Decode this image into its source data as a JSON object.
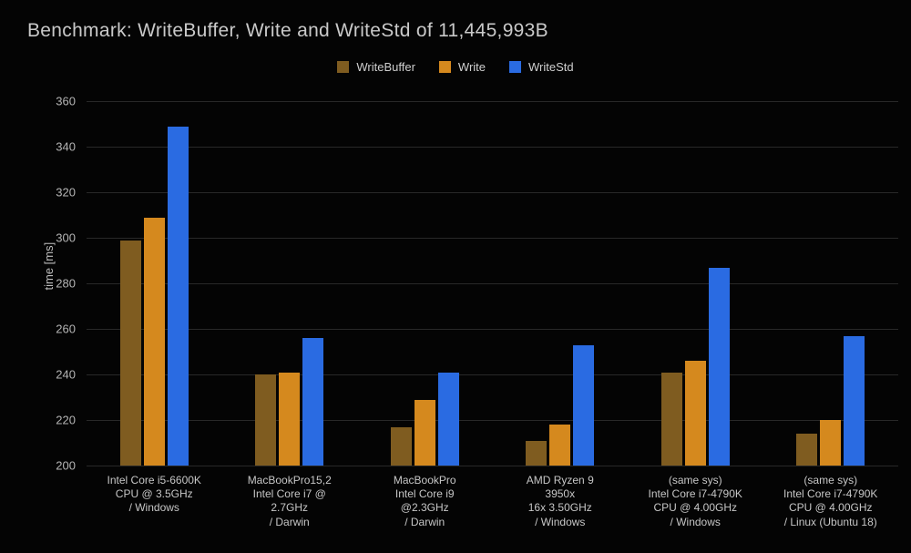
{
  "title": "Benchmark: WriteBuffer, Write and WriteStd of 11,445,993B",
  "chart_data": {
    "type": "bar",
    "title": "Benchmark: WriteBuffer, Write and WriteStd of 11,445,993B",
    "xlabel": "",
    "ylabel": "time [ms]",
    "ylim": [
      200,
      360
    ],
    "ytick_step": 20,
    "grid": true,
    "legend_position": "top",
    "background": "#040404",
    "categories": [
      [
        "Intel Core i5-6600K",
        "CPU @ 3.5GHz",
        "/ Windows"
      ],
      [
        "MacBookPro15,2",
        "Intel Core i7 @",
        "2.7GHz",
        "/ Darwin"
      ],
      [
        "MacBookPro",
        "Intel Core i9",
        "@2.3GHz",
        "/ Darwin"
      ],
      [
        "AMD Ryzen 9",
        "3950x",
        "16x 3.50GHz",
        "/ Windows"
      ],
      [
        "(same sys)",
        "Intel Core i7-4790K",
        "CPU @ 4.00GHz",
        "/ Windows"
      ],
      [
        "(same sys)",
        "Intel Core i7-4790K",
        "CPU @ 4.00GHz",
        "/ Linux (Ubuntu 18)"
      ]
    ],
    "series": [
      {
        "name": "WriteBuffer",
        "color": "#7f5c20",
        "values": [
          299,
          240,
          217,
          211,
          241,
          214
        ]
      },
      {
        "name": "Write",
        "color": "#d5891e",
        "values": [
          309,
          241,
          229,
          218,
          246,
          220
        ]
      },
      {
        "name": "WriteStd",
        "color": "#2a6be2",
        "values": [
          349,
          256,
          241,
          253,
          287,
          257
        ]
      }
    ]
  }
}
